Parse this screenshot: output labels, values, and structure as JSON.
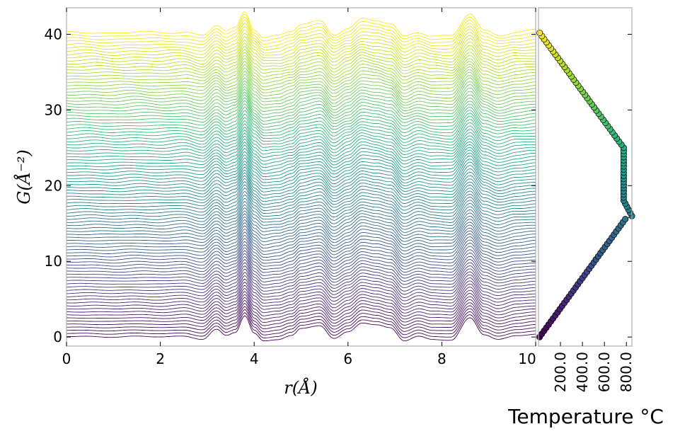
{
  "chart_data": [
    {
      "type": "line",
      "title": "",
      "xlabel": "r(Å)",
      "ylabel": "G(Å⁻²)",
      "xlim": [
        0,
        10
      ],
      "ylim": [
        -1.2,
        43.5
      ],
      "x_ticks": [
        0,
        2,
        4,
        6,
        8,
        10
      ],
      "x_tick_labels": [
        "0",
        "2",
        "4",
        "6",
        "8",
        "10"
      ],
      "y_ticks": [
        0,
        10,
        20,
        30,
        40
      ],
      "y_tick_labels": [
        "0",
        "10",
        "20",
        "30",
        "40"
      ],
      "grid": false,
      "legend": "none",
      "colormap": "viridis",
      "series_count": 99,
      "series_offset_step": 0.41,
      "base_curve": {
        "x": [
          0.0,
          0.5,
          1.0,
          1.5,
          2.0,
          2.5,
          2.9,
          3.2,
          3.4,
          3.6,
          3.8,
          4.0,
          4.2,
          4.5,
          4.8,
          5.0,
          5.4,
          5.7,
          6.0,
          6.3,
          6.6,
          6.9,
          7.2,
          7.5,
          7.8,
          8.2,
          8.6,
          8.9,
          9.2,
          9.6,
          10.0
        ],
        "y": [
          0.05,
          0.08,
          0.0,
          0.1,
          0.0,
          0.15,
          -0.3,
          1.0,
          0.2,
          0.6,
          2.8,
          0.5,
          -0.5,
          -0.3,
          0.2,
          1.1,
          1.5,
          -0.2,
          0.7,
          1.9,
          1.6,
          1.2,
          -0.5,
          0.1,
          -0.3,
          -0.4,
          2.5,
          0.3,
          -0.3,
          0.2,
          0.4
        ]
      }
    },
    {
      "type": "line",
      "title": "",
      "xlabel": "Temperature °C",
      "x_ticks": [
        200,
        400,
        600,
        800
      ],
      "x_tick_labels": [
        "200.0",
        "400.0",
        "600.0",
        "800.0"
      ],
      "xlim": [
        0,
        850
      ],
      "markers": "circle",
      "colormap": "viridis",
      "points": {
        "series_index": [
          0,
          38,
          39,
          44,
          61,
          98
        ],
        "temperature": [
          10,
          790,
          850,
          775,
          775,
          10
        ]
      }
    }
  ],
  "colors": {
    "axis": "#b0b0b0",
    "viridis_start": "#440154",
    "viridis_end": "#fde725",
    "marker_edge": "#000000"
  }
}
